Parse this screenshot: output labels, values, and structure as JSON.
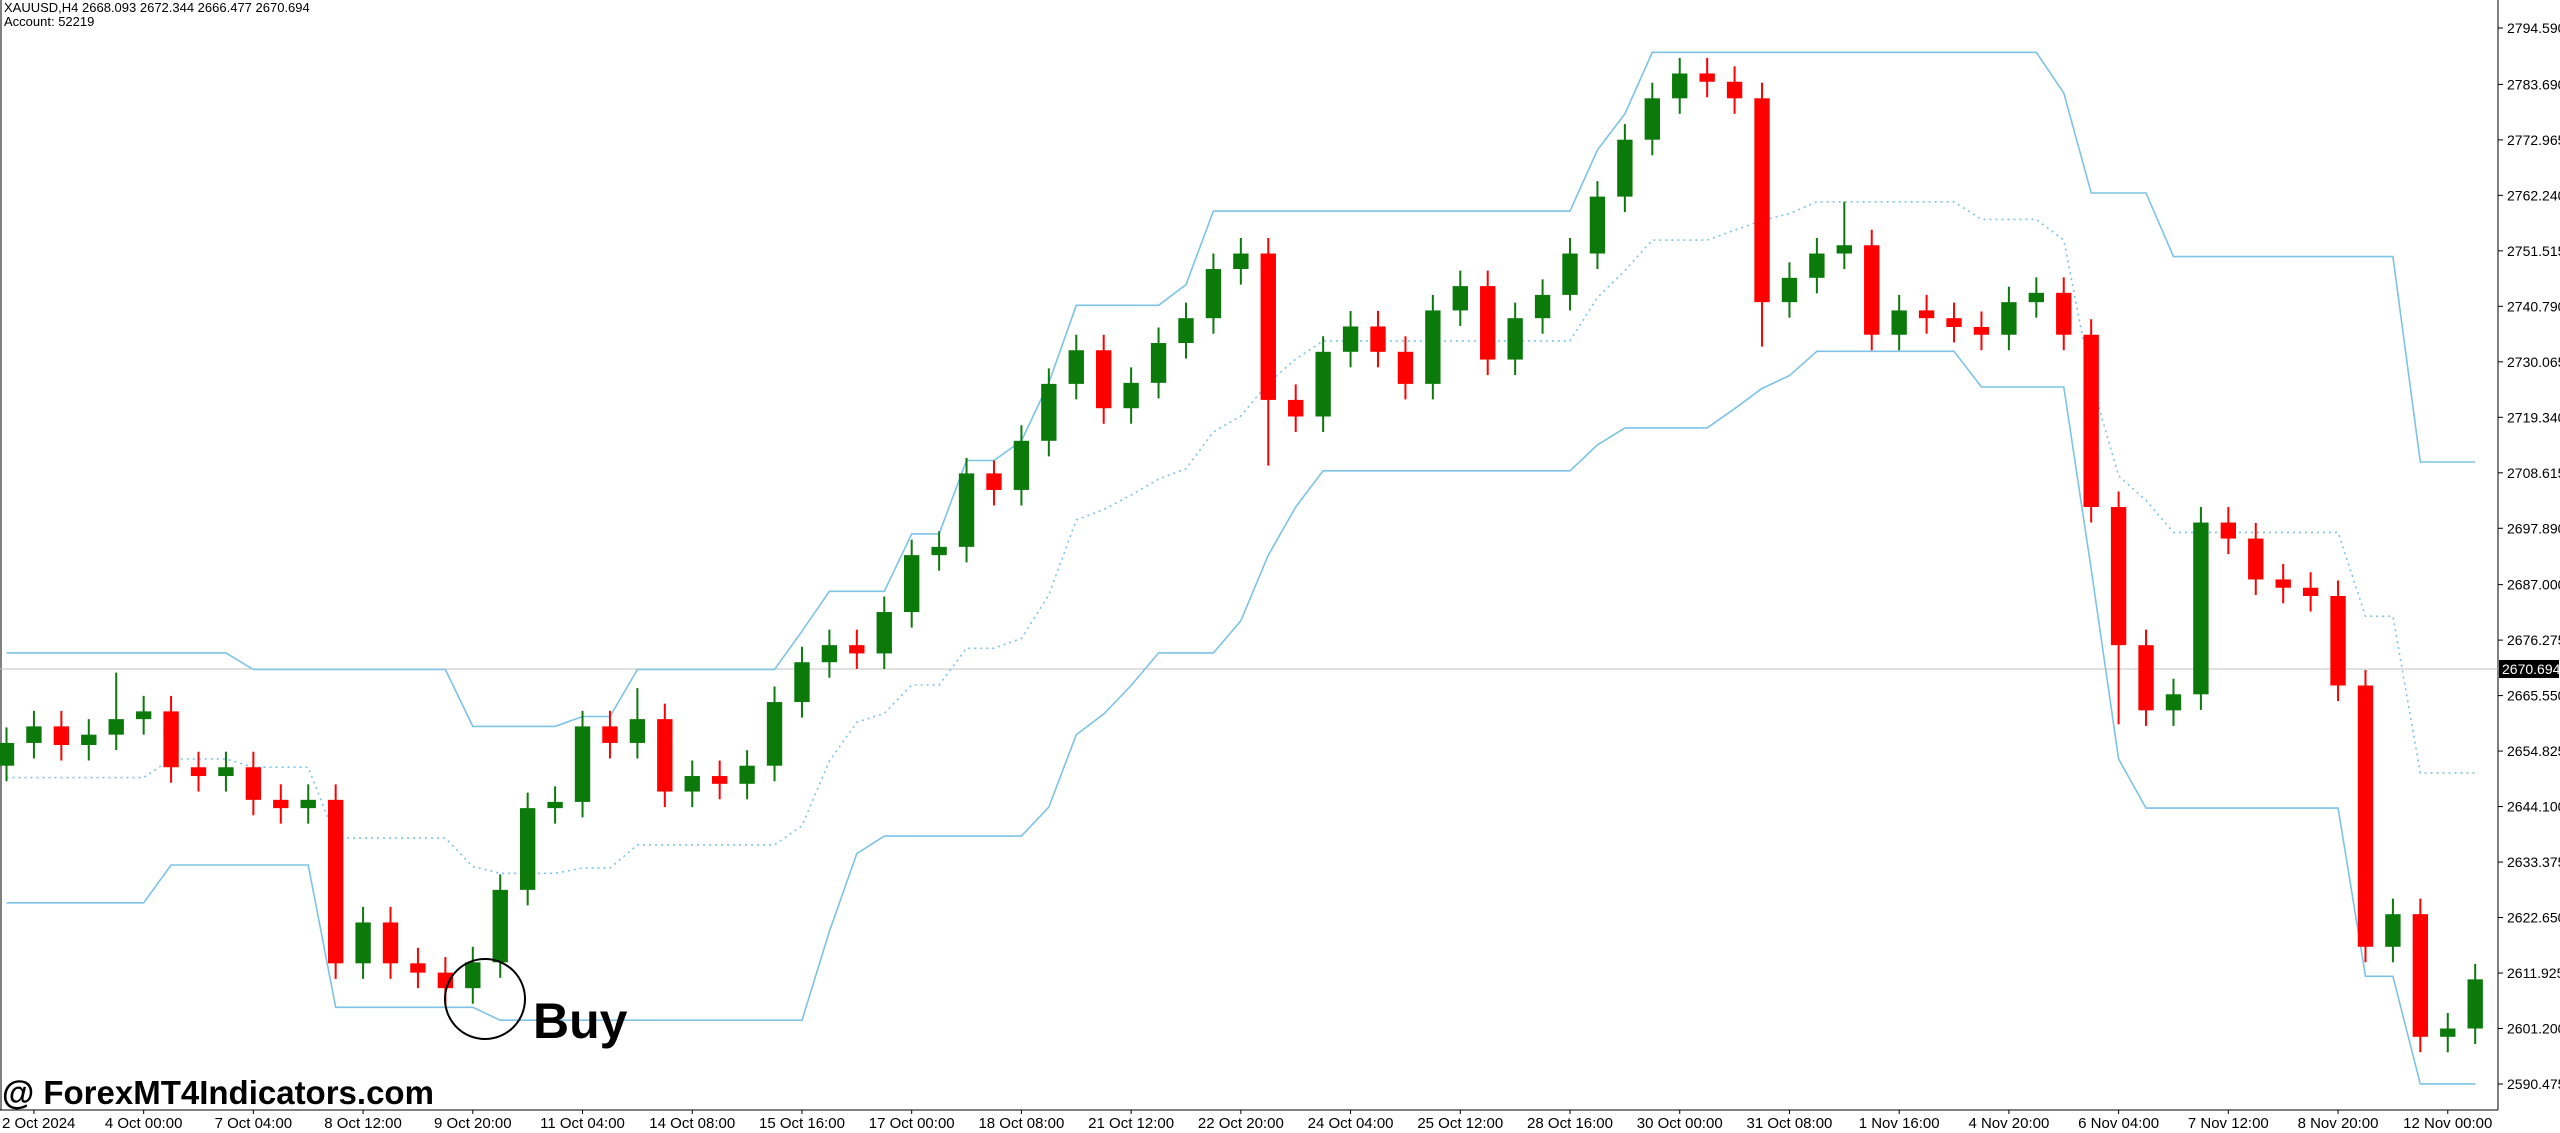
{
  "chart_data": {
    "type": "candlestick",
    "header": "XAUUSD,H4  2668.093 2672.344 2666.477 2670.694",
    "account": "Account: 52219",
    "watermark": "@ ForexMT4Indicators.com",
    "annotation": "Buy",
    "up_color": "#0b7a0b",
    "down_color": "#ff0000",
    "current_price": 2670.694,
    "categories": [
      null,
      "2 Oct 2024",
      null,
      null,
      null,
      "4 Oct 00:00",
      null,
      null,
      null,
      "7 Oct 04:00",
      null,
      null,
      null,
      "8 Oct 12:00",
      null,
      null,
      null,
      "9 Oct 20:00",
      null,
      null,
      null,
      "11 Oct 04:00",
      null,
      null,
      null,
      "14 Oct 08:00",
      null,
      null,
      null,
      "15 Oct 16:00",
      null,
      null,
      null,
      "17 Oct 00:00",
      null,
      null,
      null,
      "18 Oct 08:00",
      null,
      null,
      null,
      "21 Oct 12:00",
      null,
      null,
      null,
      "22 Oct 20:00",
      null,
      null,
      null,
      "24 Oct 04:00",
      null,
      null,
      null,
      "25 Oct 12:00",
      null,
      null,
      null,
      "28 Oct 16:00",
      null,
      null,
      null,
      "30 Oct 00:00",
      null,
      null,
      null,
      "31 Oct 08:00",
      null,
      null,
      null,
      "1 Nov 16:00",
      null,
      null,
      null,
      "4 Nov 20:00",
      null,
      null,
      null,
      "6 Nov 04:00",
      null,
      null,
      null,
      "7 Nov 12:00",
      null,
      null,
      null,
      "8 Nov 20:00",
      null,
      null,
      null,
      "12 Nov 00:00",
      null
    ],
    "open": [
      2652,
      2656.4,
      2659.6,
      2656,
      2658,
      2661,
      2662.5,
      2651.7,
      2650,
      2651.7,
      2645.4,
      2643.8,
      2645.4,
      2613.8,
      2621.7,
      2613.8,
      2612,
      2609,
      2614,
      2628,
      2643.8,
      2645,
      2659.6,
      2656.4,
      2661,
      2647,
      2650,
      2648.5,
      2652,
      2664.3,
      2672,
      2675.3,
      2673.7,
      2681.7,
      2692.7,
      2694.3,
      2708.5,
      2705.3,
      2714.8,
      2725.8,
      2732.3,
      2721.1,
      2726,
      2733.7,
      2738.5,
      2748,
      2751,
      2722.7,
      2719.5,
      2732,
      2736.9,
      2732,
      2725.8,
      2740,
      2744.7,
      2730.5,
      2738.5,
      2743,
      2751,
      2762,
      2773,
      2781,
      2785.8,
      2784.2,
      2781,
      2741.6,
      2746.3,
      2751,
      2752.6,
      2735.3,
      2740,
      2738.5,
      2736.8,
      2735.3,
      2741.6,
      2743.4,
      2735.3,
      2702,
      2675.3,
      2662.7,
      2665.8,
      2699,
      2695.9,
      2688,
      2686.4,
      2684.8,
      2667.5,
      2617,
      2623.3,
      2599.6,
      2601.2
    ],
    "high": [
      2659.4,
      2662.6,
      2662.6,
      2661,
      2670,
      2665.5,
      2665.5,
      2654.7,
      2654.7,
      2654.7,
      2648.4,
      2648.4,
      2648.4,
      2624.7,
      2624.7,
      2616.8,
      2615,
      2617,
      2631,
      2646.8,
      2648,
      2662.6,
      2662.6,
      2667,
      2664,
      2653,
      2653,
      2655,
      2667.3,
      2675,
      2678.3,
      2678.3,
      2684.7,
      2695.7,
      2697.3,
      2711.5,
      2711,
      2717.8,
      2728.8,
      2735.3,
      2735.3,
      2729,
      2736.7,
      2741.5,
      2751,
      2754,
      2754,
      2725.7,
      2735,
      2739.9,
      2739.9,
      2735,
      2743,
      2747.7,
      2747.7,
      2741.5,
      2746,
      2754,
      2765,
      2776,
      2784,
      2788.8,
      2788.8,
      2787.2,
      2784,
      2749.3,
      2754,
      2761,
      2755.6,
      2743,
      2743,
      2741.5,
      2739.8,
      2744.6,
      2746.4,
      2746.4,
      2738.3,
      2705,
      2678.3,
      2668.8,
      2702,
      2702,
      2698.9,
      2691,
      2689.4,
      2687.8,
      2670.5,
      2626.3,
      2626.3,
      2604.2,
      2613.7
    ],
    "low": [
      2649,
      2653.4,
      2653,
      2653,
      2655,
      2658,
      2648.7,
      2647,
      2647,
      2642.4,
      2640.8,
      2640.8,
      2610.8,
      2610.8,
      2610.8,
      2609,
      2606,
      2606,
      2611,
      2625,
      2640.8,
      2642,
      2653.4,
      2653.4,
      2644,
      2644,
      2645.5,
      2645.5,
      2649,
      2661.3,
      2669,
      2670.7,
      2670.7,
      2678.7,
      2689.7,
      2691.3,
      2702.3,
      2702.3,
      2711.8,
      2722.8,
      2718.1,
      2718.1,
      2723,
      2730.7,
      2735.5,
      2745,
      2710,
      2716.5,
      2716.5,
      2729,
      2729,
      2722.8,
      2722.8,
      2737,
      2727.5,
      2727.5,
      2735.5,
      2740,
      2748,
      2759,
      2770,
      2778,
      2781.2,
      2778,
      2733,
      2738.6,
      2743.3,
      2748,
      2732.3,
      2732.3,
      2735.5,
      2733.8,
      2732.3,
      2732.3,
      2738.6,
      2732.3,
      2699,
      2660,
      2659.7,
      2659.7,
      2662.8,
      2692.9,
      2685,
      2683.4,
      2681.8,
      2664.5,
      2614,
      2614,
      2596.6,
      2596.6,
      2598.2
    ],
    "close": [
      2656.4,
      2659.6,
      2656,
      2658,
      2661,
      2662.5,
      2651.7,
      2650,
      2651.7,
      2645.4,
      2643.8,
      2645.4,
      2613.8,
      2621.7,
      2613.8,
      2612,
      2609,
      2614,
      2628,
      2643.8,
      2645,
      2659.6,
      2656.4,
      2661,
      2647,
      2650,
      2648.5,
      2652,
      2664.3,
      2672,
      2675.3,
      2673.7,
      2681.7,
      2692.7,
      2694.3,
      2708.5,
      2705.3,
      2714.8,
      2725.8,
      2732.3,
      2721.1,
      2726,
      2733.7,
      2738.5,
      2748,
      2751,
      2722.7,
      2719.5,
      2732,
      2736.9,
      2732,
      2725.8,
      2740,
      2744.7,
      2730.5,
      2738.5,
      2743,
      2751,
      2762,
      2773,
      2781,
      2785.8,
      2784.2,
      2781,
      2741.6,
      2746.3,
      2751,
      2752.6,
      2735.3,
      2740,
      2738.5,
      2736.8,
      2735.3,
      2741.6,
      2743.4,
      2735.3,
      2702,
      2675.3,
      2662.7,
      2665.8,
      2699,
      2695.9,
      2688,
      2686.4,
      2684.8,
      2667.5,
      2617,
      2623.3,
      2599.6,
      2601.2,
      2610.7
    ],
    "lines": [
      {
        "color": "#7cc3e6",
        "style": "solid",
        "values": [
          2673.8,
          2673.8,
          2673.8,
          2673.8,
          2673.8,
          2673.8,
          2673.8,
          2673.8,
          2673.8,
          2670.6,
          2670.6,
          2670.6,
          2670.6,
          2670.6,
          2670.6,
          2670.6,
          2670.6,
          2659.6,
          2659.6,
          2659.6,
          2659.6,
          2661.5,
          2661.5,
          2670.6,
          2670.6,
          2670.6,
          2670.6,
          2670.6,
          2670.6,
          2678,
          2685.7,
          2685.7,
          2685.7,
          2696.8,
          2696.8,
          2711,
          2711,
          2714.8,
          2726,
          2741,
          2741,
          2741,
          2741,
          2745,
          2759.2,
          2759.2,
          2759.2,
          2759.2,
          2759.2,
          2759.2,
          2759.2,
          2759.2,
          2759.2,
          2759.2,
          2759.2,
          2759.2,
          2759.2,
          2759.2,
          2771,
          2778,
          2789.9,
          2789.9,
          2789.9,
          2789.9,
          2789.9,
          2789.9,
          2789.9,
          2789.9,
          2789.9,
          2789.9,
          2789.9,
          2789.9,
          2789.9,
          2789.9,
          2789.9,
          2782,
          2762.7,
          2762.7,
          2762.7,
          2750.4,
          2750.4,
          2750.4,
          2750.4,
          2750.4,
          2750.4,
          2750.4,
          2750.4,
          2750.4,
          2710.7,
          2710.7,
          2710.7
        ]
      },
      {
        "color": "#7cc3e6",
        "style": "dotted",
        "values": [
          2649.7,
          2649.7,
          2649.7,
          2649.7,
          2649.7,
          2649.7,
          2653.3,
          2653.3,
          2653.3,
          2651.7,
          2651.7,
          2651.7,
          2638,
          2638,
          2638,
          2638,
          2638,
          2632.5,
          2631.2,
          2631.2,
          2631.2,
          2632.2,
          2632.2,
          2636.7,
          2636.7,
          2636.7,
          2636.7,
          2636.7,
          2636.7,
          2640.4,
          2652.9,
          2660.4,
          2662.1,
          2667.6,
          2667.6,
          2674.7,
          2674.7,
          2676.6,
          2685,
          2699.5,
          2701.5,
          2704.3,
          2707.4,
          2709.4,
          2716.5,
          2719.6,
          2726,
          2730.6,
          2734.1,
          2734.1,
          2734.1,
          2734.1,
          2734.1,
          2734.1,
          2734.1,
          2734.1,
          2734.1,
          2734.1,
          2742.5,
          2747.7,
          2753.6,
          2753.6,
          2753.6,
          2755.5,
          2757.4,
          2758.7,
          2761,
          2761,
          2761,
          2761,
          2761,
          2761,
          2757.6,
          2757.6,
          2757.6,
          2753.6,
          2726.4,
          2708,
          2703.3,
          2697.1,
          2697.1,
          2697.1,
          2697.1,
          2697.1,
          2697.1,
          2697.1,
          2680.9,
          2680.9,
          2650.6,
          2650.6,
          2650.6
        ]
      },
      {
        "color": "#7cc3e6",
        "style": "solid",
        "values": [
          2625.5,
          2625.5,
          2625.5,
          2625.5,
          2625.5,
          2625.5,
          2632.8,
          2632.8,
          2632.8,
          2632.8,
          2632.8,
          2632.8,
          2605.3,
          2605.3,
          2605.3,
          2605.3,
          2605.3,
          2605.3,
          2602.8,
          2602.8,
          2602.8,
          2602.8,
          2602.8,
          2602.8,
          2602.8,
          2602.8,
          2602.8,
          2602.8,
          2602.8,
          2602.8,
          2620,
          2635,
          2638.4,
          2638.4,
          2638.4,
          2638.4,
          2638.4,
          2638.4,
          2644,
          2658,
          2662,
          2667.5,
          2673.8,
          2673.8,
          2673.8,
          2680,
          2692.7,
          2702,
          2709,
          2709,
          2709,
          2709,
          2709,
          2709,
          2709,
          2709,
          2709,
          2709,
          2714,
          2717.3,
          2717.3,
          2717.3,
          2717.3,
          2721,
          2724.9,
          2727.4,
          2732.1,
          2732.1,
          2732.1,
          2732.1,
          2732.1,
          2732.1,
          2725.2,
          2725.2,
          2725.2,
          2725.2,
          2690,
          2653.3,
          2643.8,
          2643.8,
          2643.8,
          2643.8,
          2643.8,
          2643.8,
          2643.8,
          2643.8,
          2611.3,
          2611.3,
          2590.5,
          2590.5,
          2590.5
        ]
      }
    ],
    "ylim": [
      2590.475,
      2794.59
    ],
    "yticks": [
      {
        "value": 2590.475,
        "label": "2590.475"
      },
      {
        "value": 2601.2,
        "label": "2601.200"
      },
      {
        "value": 2611.925,
        "label": "2611.925"
      },
      {
        "value": 2622.65,
        "label": "2622.650"
      },
      {
        "value": 2633.375,
        "label": "2633.375"
      },
      {
        "value": 2644.1,
        "label": "2644.100"
      },
      {
        "value": 2654.825,
        "label": "2654.825"
      },
      {
        "value": 2665.55,
        "label": "2665.550"
      },
      {
        "value": 2676.275,
        "label": "2676.275"
      },
      {
        "value": 2687,
        "label": "2687.000"
      },
      {
        "value": 2697.89,
        "label": "2697.890"
      },
      {
        "value": 2708.615,
        "label": "2708.615"
      },
      {
        "value": 2719.34,
        "label": "2719.340"
      },
      {
        "value": 2730.065,
        "label": "2730.065"
      },
      {
        "value": 2740.79,
        "label": "2740.790"
      },
      {
        "value": 2751.515,
        "label": "2751.515"
      },
      {
        "value": 2762.24,
        "label": "2762.240"
      },
      {
        "value": 2772.965,
        "label": "2772.965"
      },
      {
        "value": 2783.69,
        "label": "2783.690"
      },
      {
        "value": 2794.59,
        "label": "2794.590"
      }
    ]
  }
}
